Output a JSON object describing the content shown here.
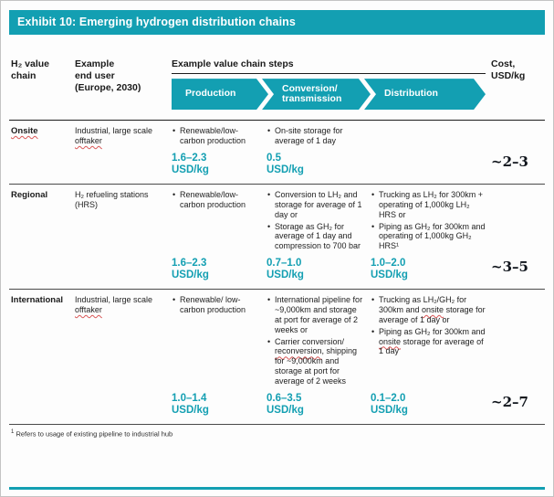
{
  "colors": {
    "accent": "#139fb2"
  },
  "title": "Exhibit 10: Emerging hydrogen distribution chains",
  "header": {
    "value_chain": "H₂ value\nchain",
    "end_user": "Example\nend user\n(Europe, 2030)",
    "steps": "Example value chain steps",
    "cost": "Cost,\nUSD/kg",
    "arrows": [
      "Production",
      "Conversion/\ntransmission",
      "Distribution"
    ]
  },
  "rows": [
    {
      "chain": "Onsite",
      "end_user": {
        "pre": "Industrial, large scale ",
        "flag": "offtaker"
      },
      "production": [
        "Renewable/low-carbon production"
      ],
      "conversion": [
        "On-site storage for average of 1 day"
      ],
      "distribution": [],
      "costs": {
        "production": "1.6–2.3\nUSD/kg",
        "conversion": "0.5\nUSD/kg",
        "distribution": ""
      },
      "total": "~2–3"
    },
    {
      "chain": "Regional",
      "end_user": {
        "pre": "H₂ refueling stations (HRS)",
        "flag": ""
      },
      "production": [
        "Renewable/low-carbon production"
      ],
      "conversion": [
        "Conversion to LH₂ and storage for average of 1 day or",
        "Storage as GH₂ for average of 1 day and compression to 700 bar"
      ],
      "distribution": [
        "Trucking as LH₂ for 300km + operating of 1,000kg LH₂ HRS or",
        "Piping as GH₂ for 300km and operating of 1,000kg GH₂ HRS¹"
      ],
      "costs": {
        "production": "1.6–2.3\nUSD/kg",
        "conversion": "0.7–1.0\nUSD/kg",
        "distribution": "1.0–2.0\nUSD/kg"
      },
      "total": "~3–5"
    },
    {
      "chain": "International",
      "end_user": {
        "pre": "Industrial, large scale ",
        "flag": "offtaker"
      },
      "production": [
        "Renewable/ low-carbon production"
      ],
      "conversion": [
        "International pipeline for ~9,000km and storage at port for average of 2 weeks or",
        {
          "pre": "Carrier conversion/ ",
          "sq": "reconversion",
          "post": ", shipping for ~9,000km and storage at port for average of 2 weeks"
        }
      ],
      "distribution": [
        {
          "pre": "Trucking as LH₂/GH₂ for 300km and ",
          "sq": "onsite",
          "post": " storage for average of 1 day or"
        },
        {
          "pre": "Piping as GH₂ for 300km and ",
          "sq": "onsite",
          "post": " storage for average of 1 day"
        }
      ],
      "costs": {
        "production": "1.0–1.4\nUSD/kg",
        "conversion": "0.6–3.5\nUSD/kg",
        "distribution": "0.1–2.0\nUSD/kg"
      },
      "total": "~2–7"
    }
  ],
  "footnote": {
    "marker": "1",
    "text": "Refers to usage of existing pipeline to industrial hub"
  }
}
